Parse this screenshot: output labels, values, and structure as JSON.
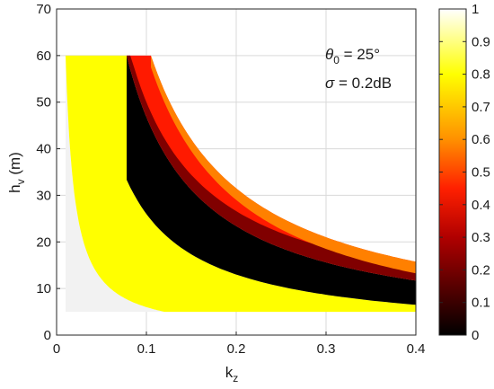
{
  "chart_data": {
    "type": "heatmap",
    "xlabel": {
      "main": "k",
      "sub": "z"
    },
    "ylabel": {
      "main": "h",
      "sub": "v",
      "unit": " (m)"
    },
    "xlim": [
      0,
      0.4
    ],
    "ylim": [
      0,
      70
    ],
    "x_ticks": [
      "0",
      "0.1",
      "0.2",
      "0.3",
      "0.4"
    ],
    "y_ticks": [
      "0",
      "10",
      "20",
      "30",
      "40",
      "50",
      "60",
      "70"
    ],
    "grid": true,
    "annotations": [
      {
        "symbol": "θ",
        "sub": "0",
        "text": " = 25°"
      },
      {
        "symbol": "σ",
        "sub": "",
        "text": " = 0.2dB"
      }
    ],
    "colorbar": {
      "range": [
        0,
        1
      ],
      "ticks": [
        "0",
        "0.1",
        "0.2",
        "0.3",
        "0.4",
        "0.5",
        "0.6",
        "0.7",
        "0.8",
        "0.9",
        "1"
      ],
      "colormap": "hot (reversed)"
    },
    "region": {
      "h_max": 60,
      "h_min": 5,
      "k_start_at_top": 0.01,
      "k_end_at_top": 0.105,
      "k_max": 0.4,
      "top_edge_at_kmax": 14
    },
    "black_band": {
      "k_start_at_top": 0.078,
      "upper_at_kmax": 9,
      "lower_at_kmax": 5
    }
  },
  "colors": {
    "white": "#f2f2f2",
    "yellow": "#ffff00",
    "orange": "#ff8000",
    "red": "#ff1a00",
    "dark_red": "#800000",
    "black": "#000000",
    "grid": "#d9d9d9"
  }
}
